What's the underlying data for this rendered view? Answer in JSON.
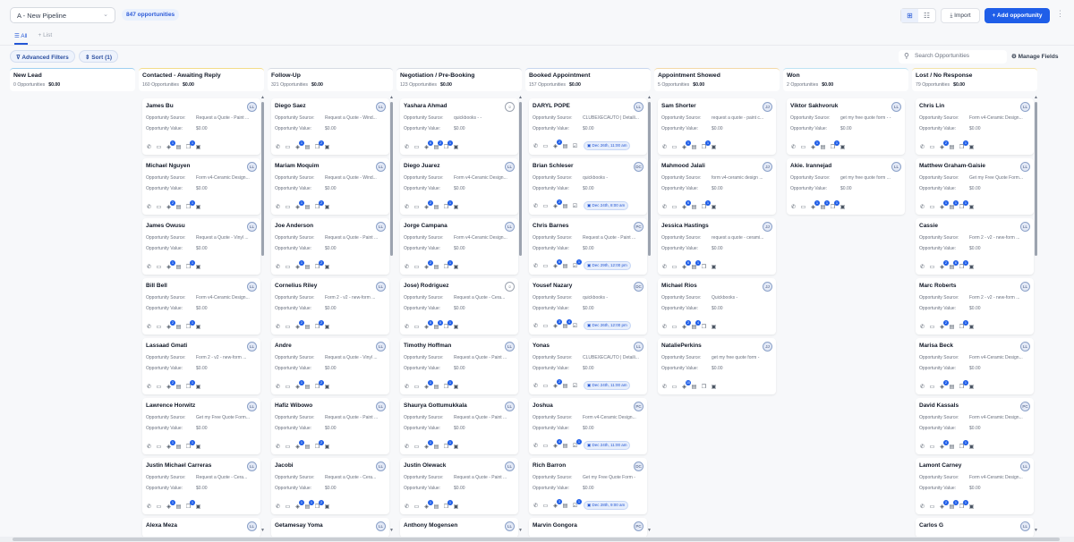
{
  "header": {
    "pipeline": "A - New Pipeline",
    "opportunity_count": "847 opportunities",
    "import_label": "Import",
    "add_label": "+ Add opportunity",
    "grid_icon": "grid-icon",
    "list_icon": "list-icon"
  },
  "tabs": {
    "all": "All",
    "list": "+ List"
  },
  "filters": {
    "advanced": "Advanced Filters",
    "sort": "Sort (1)",
    "search_placeholder": "Search Opportunities",
    "manage_fields": "Manage Fields"
  },
  "labels": {
    "source": "Opportunity Source:",
    "value": "Opportunity Value:"
  },
  "colors": {
    "accent": "#1f5ee8",
    "badge": "#1f5ee8"
  },
  "columns": [
    {
      "title": "New Lead",
      "count": "0 Opportunities",
      "amount": "$0.00",
      "accent": "#9fd0f0",
      "cards": []
    },
    {
      "title": "Contacted - Awaiting Reply",
      "count": "160 Opportunities",
      "amount": "$0.00",
      "accent": "#f3dc8a",
      "cards": [
        {
          "name": "James Bu",
          "source": "Request a Quote - Paint ...",
          "value": "$0.00",
          "owner": "LL",
          "badges": [
            "1",
            "",
            "1"
          ]
        },
        {
          "name": "Michael Nguyen",
          "source": "Form v4-Ceramic Design...",
          "value": "$0.00",
          "owner": "LL",
          "badges": [
            "2",
            "",
            "1"
          ]
        },
        {
          "name": "James Owusu",
          "source": "Request a Quote - Vinyl ...",
          "value": "$0.00",
          "owner": "LL",
          "badges": [
            "1",
            "",
            "1"
          ]
        },
        {
          "name": "Bill Bell",
          "source": "Form v4-Ceramic Design...",
          "value": "$0.00",
          "owner": "LL",
          "badges": [
            "2",
            "",
            "1"
          ]
        },
        {
          "name": "Lassaad Gmati",
          "source": "Form 2 - v2 - new-form ...",
          "value": "$0.00",
          "owner": "LL",
          "badges": [
            "2",
            "",
            "1"
          ]
        },
        {
          "name": "Lawrence Horwitz",
          "source": "Get my Free Quote Form...",
          "value": "$0.00",
          "owner": "LL",
          "badges": [
            "1",
            "",
            "1"
          ]
        },
        {
          "name": "Justin Michael Carreras",
          "source": "Request a Quote - Cera...",
          "value": "$0.00",
          "owner": "LL",
          "badges": [
            "1",
            "",
            "1"
          ]
        },
        {
          "name": "Alexa Meza",
          "owner": "LL"
        }
      ]
    },
    {
      "title": "Follow-Up",
      "count": "321 Opportunities",
      "amount": "$0.00",
      "accent": "#d6dbe3",
      "cards": [
        {
          "name": "Diego Saez",
          "source": "Request a Quote - Wind...",
          "value": "$0.00",
          "owner": "LL",
          "badges": [
            "1",
            "",
            "2"
          ]
        },
        {
          "name": "Mariam Moquim",
          "source": "Request a Quote - Wind...",
          "value": "$0.00",
          "owner": "LL",
          "badges": [
            "1",
            "",
            "2"
          ]
        },
        {
          "name": "Joe Anderson",
          "source": "Request a Quote - Paint ...",
          "value": "$0.00",
          "owner": "LL",
          "badges": [
            "1",
            "",
            "2"
          ]
        },
        {
          "name": "Cornelius Riley",
          "source": "Form 2 - v2 - new-form ...",
          "value": "$0.00",
          "owner": "LL",
          "badges": [
            "2",
            "",
            "2"
          ]
        },
        {
          "name": "Andre",
          "source": "Request a Quote - Vinyl ...",
          "value": "$0.00",
          "owner": "LL",
          "badges": [
            "1",
            "",
            "2"
          ]
        },
        {
          "name": "Hafiz Wibowo",
          "source": "Request a Quote - Paint ...",
          "value": "$0.00",
          "owner": "LL",
          "badges": [
            "1",
            "",
            "2"
          ]
        },
        {
          "name": "Jacobi",
          "source": "Request a Quote - Cera...",
          "value": "$0.00",
          "owner": "LL",
          "badges": [
            "1",
            "1",
            "2"
          ]
        },
        {
          "name": "Getamesay Yoma",
          "owner": "LL"
        }
      ]
    },
    {
      "title": "Negotiation / Pre-Booking",
      "count": "123 Opportunities",
      "amount": "$0.00",
      "accent": "#d6dbe3",
      "cards": [
        {
          "name": "Yashara Ahmad",
          "source": "quickbooks - -",
          "value": "$0.00",
          "owner": "person",
          "badges": [
            "6",
            "2",
            "1"
          ]
        },
        {
          "name": "Diego Juarez",
          "source": "Form v4-Ceramic Design...",
          "value": "$0.00",
          "owner": "LL",
          "badges": [
            "2",
            "",
            "1"
          ]
        },
        {
          "name": "Jorge Campana",
          "source": "Form v4-Ceramic Design...",
          "value": "$0.00",
          "owner": "LL",
          "badges": [
            "2",
            "",
            "1"
          ]
        },
        {
          "name": "Jose) Rodriguez",
          "source": "Request a Quote - Cera...",
          "value": "$0.00",
          "owner": "person",
          "badges": [
            "5",
            "5",
            "1"
          ]
        },
        {
          "name": "Timothy Hoffman",
          "source": "Request a Quote - Paint ...",
          "value": "$0.00",
          "owner": "LL",
          "badges": [
            "1",
            "",
            "1"
          ]
        },
        {
          "name": "Shaurya Gottumukkala",
          "source": "Request a Quote - Paint ...",
          "value": "$0.00",
          "owner": "LL",
          "badges": [
            "1",
            "",
            "1"
          ]
        },
        {
          "name": "Justin Olewack",
          "source": "Request a Quote - Paint ...",
          "value": "$0.00",
          "owner": "LL",
          "badges": [
            "1",
            "",
            "1"
          ]
        },
        {
          "name": "Anthony Mogensen",
          "owner": "LL"
        }
      ]
    },
    {
      "title": "Booked Appointment",
      "count": "157 Opportunities",
      "amount": "$0.00",
      "accent": "#c8d6ee",
      "cards": [
        {
          "name": "DARYL POPE",
          "source": "CLUBEXECAUTO | Detaili...",
          "value": "$0.00",
          "owner": "LL",
          "badges": [
            "2",
            "",
            ""
          ],
          "appointment": "Dec 26th, 11:00 am"
        },
        {
          "name": "Brian Schleser",
          "source": "quickbooks -",
          "value": "$0.00",
          "owner": "DC",
          "badges": [
            "2",
            "",
            ""
          ],
          "appointment": "Dec 24th, 8:00 am"
        },
        {
          "name": "Chris Barnes",
          "source": "Request a Quote - Paint ...",
          "value": "$0.00",
          "owner": "PC",
          "badges": [
            "6",
            "",
            "1"
          ],
          "appointment": "Dec 29th, 12:00 pm"
        },
        {
          "name": "Yousef Nazary",
          "source": "quickbooks -",
          "value": "$0.00",
          "owner": "DC",
          "badges": [
            "3",
            "4",
            ""
          ],
          "appointment": "Dec 26th, 12:00 pm"
        },
        {
          "name": "Yonas",
          "source": "CLUBEXECAUTO | Detaili...",
          "value": "$0.00",
          "owner": "LL",
          "badges": [
            "2",
            "",
            ""
          ],
          "appointment": "Dec 24th, 11:00 am"
        },
        {
          "name": "Joshua",
          "source": "Form v4-Ceramic Design...",
          "value": "$0.00",
          "owner": "PC",
          "badges": [
            "4",
            "",
            "1"
          ],
          "appointment": "Dec 24th, 11:00 am"
        },
        {
          "name": "Rich Barron",
          "source": "Get my Free Quote Form -",
          "value": "$0.00",
          "owner": "DC",
          "badges": [
            "3",
            "",
            "1"
          ],
          "appointment": "Dec 28th, 9:00 am"
        },
        {
          "name": "Marvin Gongora",
          "owner": "PC"
        }
      ]
    },
    {
      "title": "Appointment Showed",
      "count": "5 Opportunities",
      "amount": "$0.00",
      "accent": "#f3d9a8",
      "cards": [
        {
          "name": "Sam Shorter",
          "source": "request a quote - paint c...",
          "value": "$0.00",
          "owner": "JJ",
          "badges": [
            "1",
            "",
            "1"
          ]
        },
        {
          "name": "Mahmood Jalali",
          "source": "form v4-ceramic design ...",
          "value": "$0.00",
          "owner": "JJ",
          "badges": [
            "6",
            "",
            "1"
          ]
        },
        {
          "name": "Jessica Hastings",
          "source": "request a quote - cerami...",
          "value": "$0.00",
          "owner": "JJ",
          "badges": [
            "6",
            "1",
            ""
          ]
        },
        {
          "name": "Michael Rios",
          "source": "Quickbooks -",
          "value": "$0.00",
          "owner": "JJ",
          "badges": [
            "2",
            "4",
            ""
          ]
        },
        {
          "name": "NataliePerkins",
          "source": "get my free quote form -",
          "value": "$0.00",
          "owner": "JJ",
          "badges": [
            "10",
            "",
            ""
          ]
        }
      ]
    },
    {
      "title": "Won",
      "count": "2 Opportunities",
      "amount": "$0.00",
      "accent": "#bfe3f3",
      "cards": [
        {
          "name": "Viktor Sakhvoruk",
          "source": "get my free quote form - -",
          "value": "$0.00",
          "owner": "LL",
          "badges": [
            "1",
            "",
            "1"
          ]
        },
        {
          "name": "Akie. Irannejad",
          "source": "get my free quote form ...",
          "value": "$0.00",
          "owner": "LL",
          "badges": [
            "1",
            "1",
            "1"
          ]
        }
      ]
    },
    {
      "title": "Lost / No Response",
      "count": "79 Opportunities",
      "amount": "$0.00",
      "accent": "#f3e3a8",
      "cards": [
        {
          "name": "Chris Lin",
          "source": "Form v4-Ceramic Design...",
          "value": "$0.00",
          "owner": "LL",
          "badges": [
            "2",
            "",
            "1"
          ]
        },
        {
          "name": "Matthew Graham-Gaisie",
          "source": "Get my Free Quote Form...",
          "value": "$0.00",
          "owner": "LL",
          "badges": [
            "1",
            "1",
            "1"
          ]
        },
        {
          "name": "Cassie",
          "source": "Form 2 - v2 - new-form ...",
          "value": "$0.00",
          "owner": "LL",
          "badges": [
            "2",
            "6",
            "1"
          ]
        },
        {
          "name": "Marc Roberts",
          "source": "Form 2 - v2 - new-form ...",
          "value": "$0.00",
          "owner": "LL",
          "badges": [
            "2",
            "",
            "1"
          ]
        },
        {
          "name": "Marisa Beck",
          "source": "Form v4-Ceramic Design...",
          "value": "$0.00",
          "owner": "LL",
          "badges": [
            "2",
            "",
            "1"
          ]
        },
        {
          "name": "David Kassals",
          "source": "Form v4-Ceramic Design...",
          "value": "$0.00",
          "owner": "PC",
          "badges": [
            "4",
            "",
            "1"
          ]
        },
        {
          "name": "Lamont Carney",
          "source": "Form v4-Ceramic Design...",
          "value": "$0.00",
          "owner": "LL",
          "badges": [
            "2",
            "1",
            "1"
          ]
        },
        {
          "name": "Carlos G",
          "owner": "LL"
        }
      ]
    }
  ]
}
